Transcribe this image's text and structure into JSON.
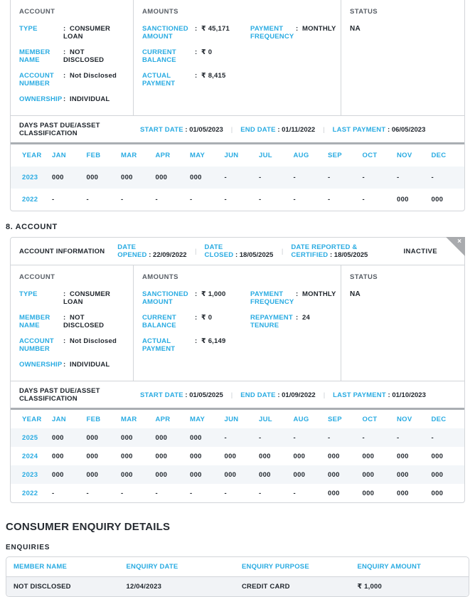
{
  "colors": {
    "accent": "#29ABE2",
    "dark": "#21272E",
    "muted": "#585E66",
    "border": "#D2D5D9",
    "row_alt": "#F3F6F9",
    "ribbon": "#A9ABAE",
    "sep": "#AAAEB3",
    "pipe": "#C9CDD1",
    "enq_row": "#F1F3F6"
  },
  "month_columns": [
    "YEAR",
    "JAN",
    "FEB",
    "MAR",
    "APR",
    "MAY",
    "JUN",
    "JUL",
    "AUG",
    "SEP",
    "OCT",
    "NOV",
    "DEC"
  ],
  "headings": {
    "account_section": "8. ACCOUNT",
    "enquiry_section": "CONSUMER ENQUIRY DETAILS",
    "enquiries_label": "ENQUIRIES"
  },
  "accounts": [
    {
      "panels": {
        "account": {
          "title": "ACCOUNT",
          "fields": [
            {
              "label": "TYPE",
              "value": "CONSUMER LOAN"
            },
            {
              "label": "MEMBER NAME",
              "value": "NOT DISCLOSED"
            },
            {
              "label": "ACCOUNT NUMBER",
              "value": "Not Disclosed"
            },
            {
              "label": "OWNERSHIP",
              "value": "INDIVIDUAL"
            }
          ]
        },
        "amounts": {
          "title": "AMOUNTS",
          "left": [
            {
              "label": "SANCTIONED AMOUNT",
              "value": "₹ 45,171"
            },
            {
              "label": "CURRENT BALANCE",
              "value": "₹ 0"
            },
            {
              "label": "ACTUAL PAYMENT",
              "value": "₹ 8,415"
            }
          ],
          "right": [
            {
              "label": "PAYMENT FREQUENCY",
              "value": "MONTHLY"
            }
          ]
        },
        "status": {
          "title": "STATUS",
          "value": "NA"
        }
      },
      "dpd": {
        "title": "DAYS PAST DUE/ASSET CLASSIFICATION",
        "dates": [
          {
            "label": "START DATE",
            "value": "01/05/2023"
          },
          {
            "label": "END DATE",
            "value": "01/11/2022"
          },
          {
            "label": "LAST PAYMENT",
            "value": "06/05/2023"
          }
        ],
        "rows": [
          {
            "year": "2023",
            "values": [
              "000",
              "000",
              "000",
              "000",
              "000",
              "-",
              "-",
              "-",
              "-",
              "-",
              "-",
              "-"
            ]
          },
          {
            "year": "2022",
            "values": [
              "-",
              "-",
              "-",
              "-",
              "-",
              "-",
              "-",
              "-",
              "-",
              "-",
              "000",
              "000"
            ]
          }
        ]
      }
    },
    {
      "info_bar": {
        "title": "ACCOUNT INFORMATION",
        "dates": [
          {
            "label": "DATE OPENED",
            "value": "22/09/2022"
          },
          {
            "label": "DATE CLOSED",
            "value": "18/05/2025"
          },
          {
            "label": "DATE REPORTED & CERTIFIED",
            "value": "18/05/2025"
          }
        ],
        "status_badge": "INACTIVE",
        "close_icon": "×"
      },
      "panels": {
        "account": {
          "title": "ACCOUNT",
          "fields": [
            {
              "label": "TYPE",
              "value": "CONSUMER LOAN"
            },
            {
              "label": "MEMBER NAME",
              "value": "NOT DISCLOSED"
            },
            {
              "label": "ACCOUNT NUMBER",
              "value": "Not Disclosed"
            },
            {
              "label": "OWNERSHIP",
              "value": "INDIVIDUAL"
            }
          ]
        },
        "amounts": {
          "title": "AMOUNTS",
          "left": [
            {
              "label": "SANCTIONED AMOUNT",
              "value": "₹ 1,000"
            },
            {
              "label": "CURRENT BALANCE",
              "value": "₹ 0"
            },
            {
              "label": "ACTUAL PAYMENT",
              "value": "₹ 6,149"
            }
          ],
          "right": [
            {
              "label": "PAYMENT FREQUENCY",
              "value": "MONTHLY"
            },
            {
              "label": "REPAYMENT TENURE",
              "value": "24"
            }
          ]
        },
        "status": {
          "title": "STATUS",
          "value": "NA"
        }
      },
      "dpd": {
        "title": "DAYS PAST DUE/ASSET CLASSIFICATION",
        "dates": [
          {
            "label": "START DATE",
            "value": "01/05/2025"
          },
          {
            "label": "END DATE",
            "value": "01/09/2022"
          },
          {
            "label": "LAST PAYMENT",
            "value": "01/10/2023"
          }
        ],
        "rows": [
          {
            "year": "2025",
            "values": [
              "000",
              "000",
              "000",
              "000",
              "000",
              "-",
              "-",
              "-",
              "-",
              "-",
              "-",
              "-"
            ]
          },
          {
            "year": "2024",
            "values": [
              "000",
              "000",
              "000",
              "000",
              "000",
              "000",
              "000",
              "000",
              "000",
              "000",
              "000",
              "000"
            ]
          },
          {
            "year": "2023",
            "values": [
              "000",
              "000",
              "000",
              "000",
              "000",
              "000",
              "000",
              "000",
              "000",
              "000",
              "000",
              "000"
            ]
          },
          {
            "year": "2022",
            "values": [
              "-",
              "-",
              "-",
              "-",
              "-",
              "-",
              "-",
              "-",
              "000",
              "000",
              "000",
              "000"
            ]
          }
        ]
      }
    }
  ],
  "enquiries_table": {
    "columns": [
      "MEMBER NAME",
      "ENQUIRY DATE",
      "ENQUIRY PURPOSE",
      "ENQUIRY AMOUNT"
    ],
    "rows": [
      [
        "NOT DISCLOSED",
        "12/04/2023",
        "CREDIT CARD",
        "₹ 1,000"
      ]
    ]
  }
}
